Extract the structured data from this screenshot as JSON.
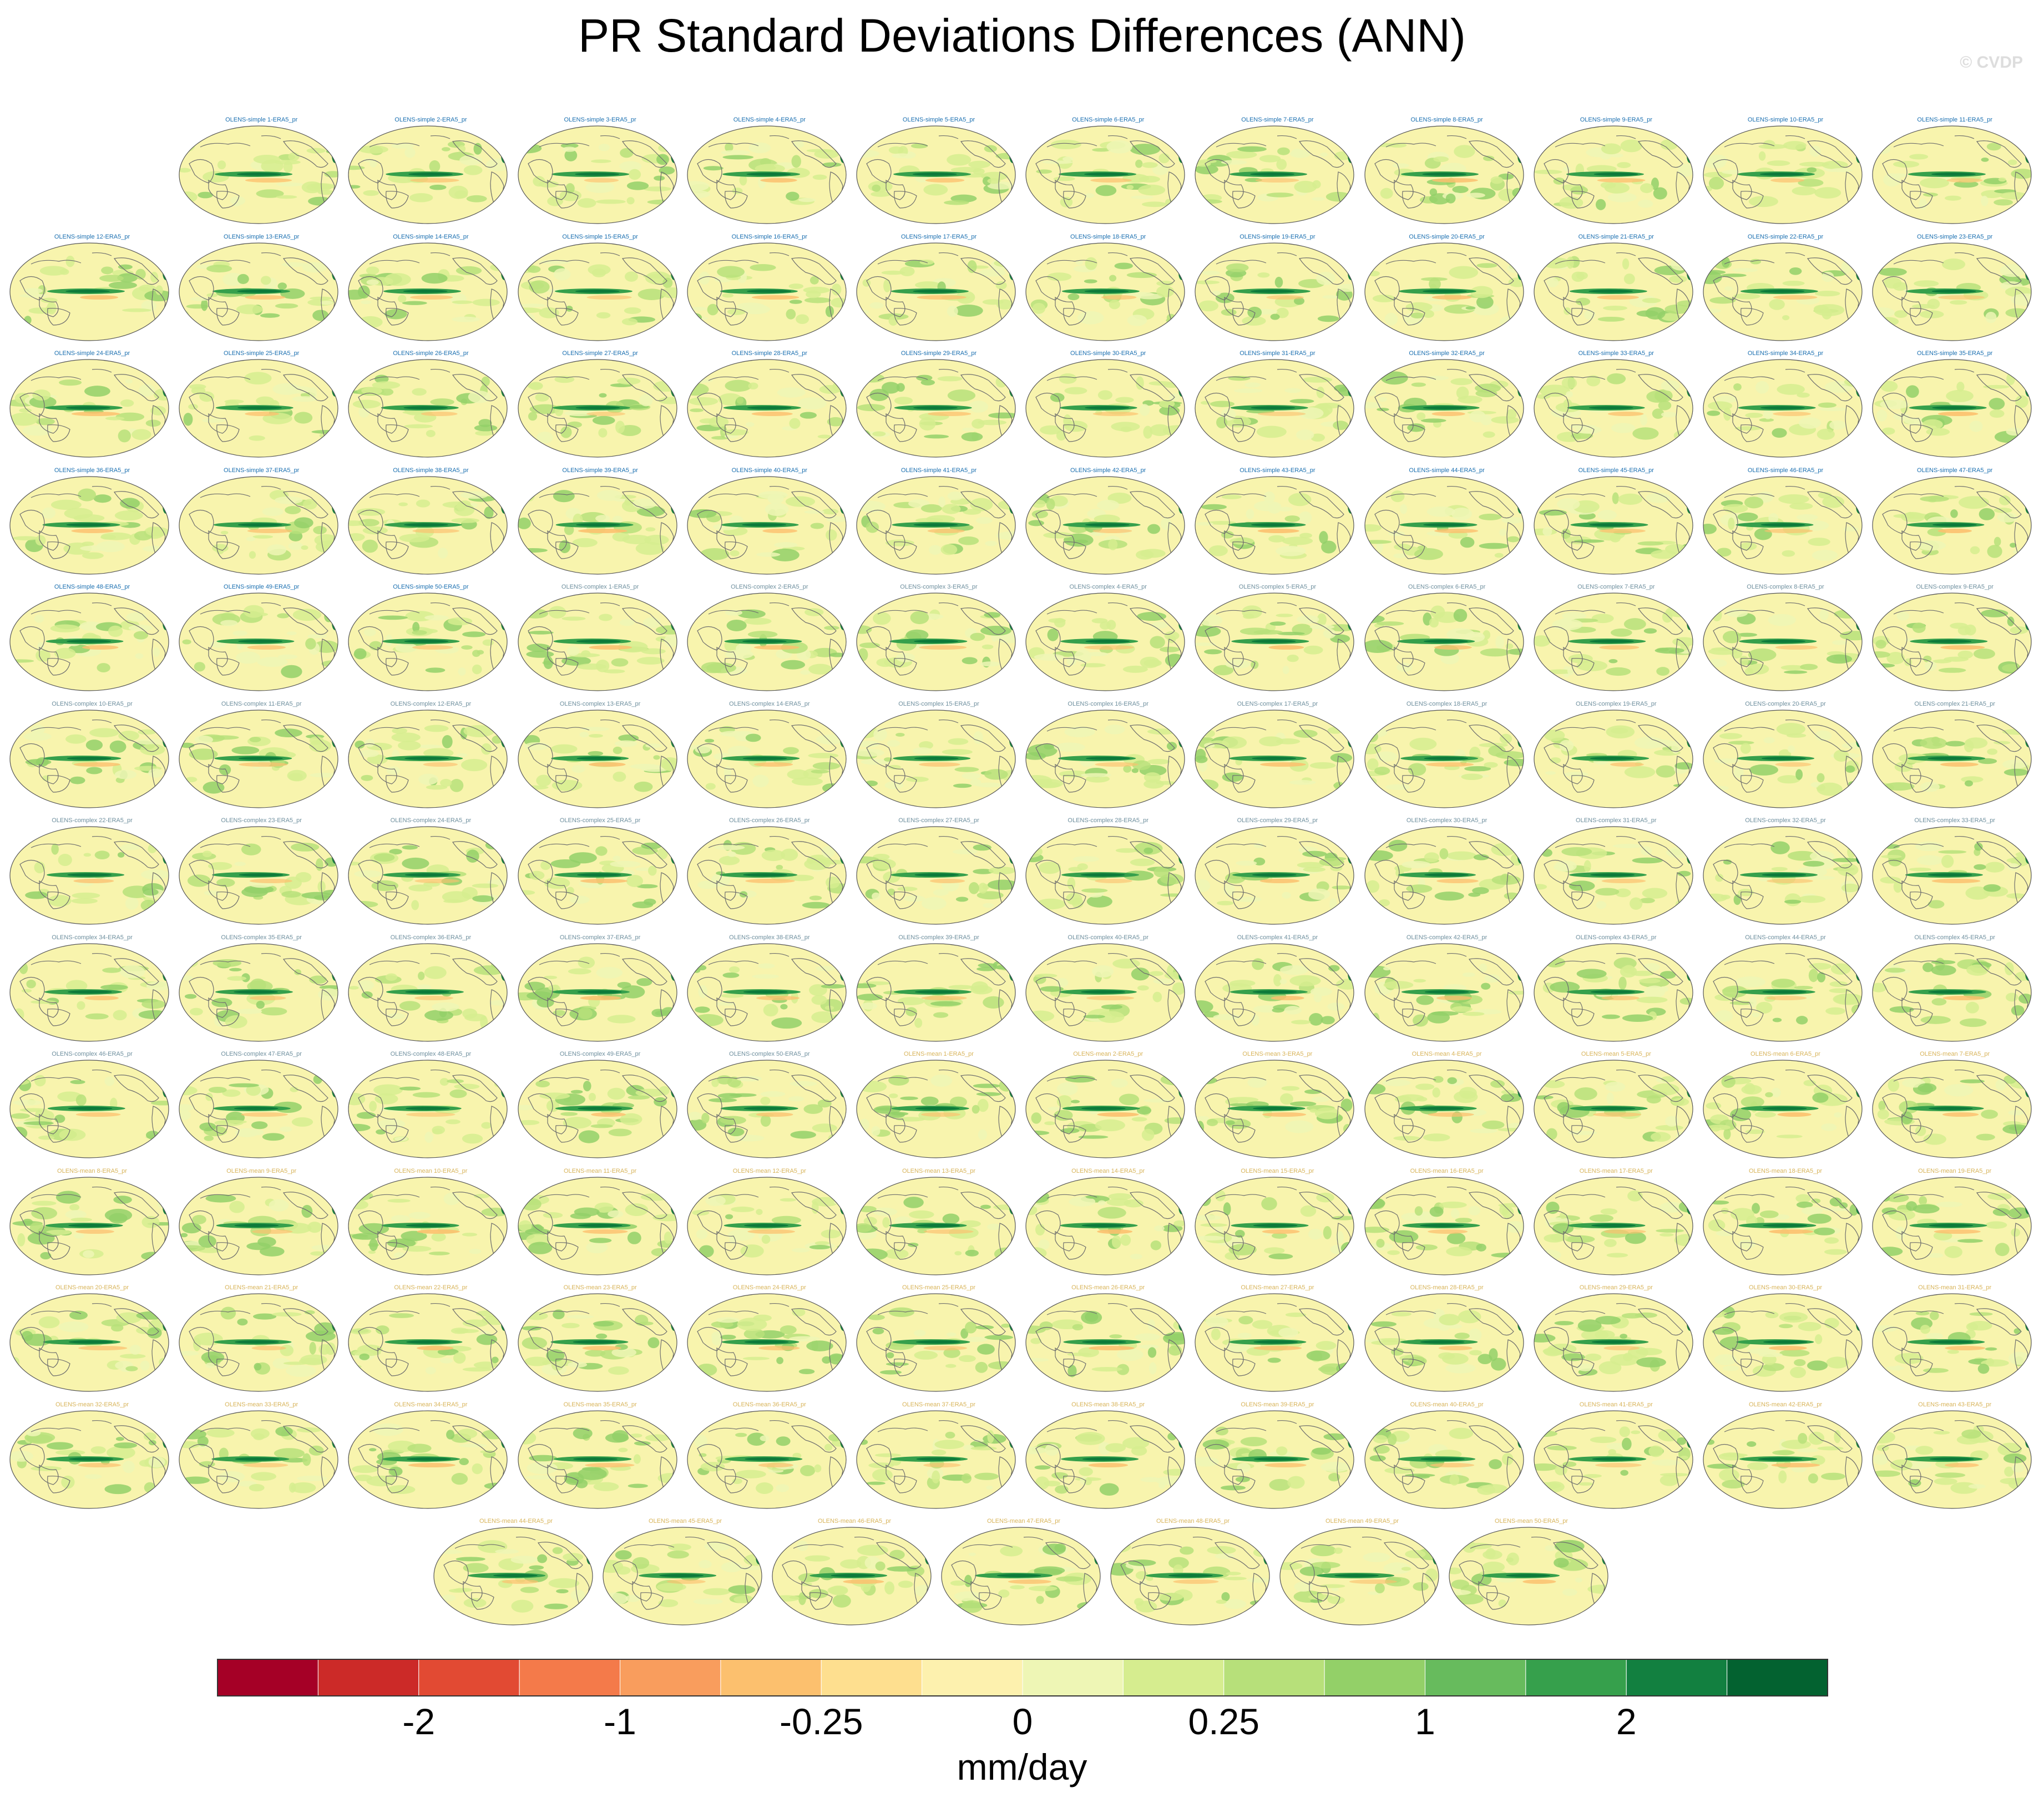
{
  "title": "PR Standard Deviations Differences (ANN)",
  "watermark": "© CVDP",
  "chart_data": {
    "type": "heatmap",
    "subtype": "small-multiple global map panels (Hammer projection)",
    "title": "PR Standard Deviations Differences (ANN)",
    "panels": [
      "OLENS-simple 1-ERA5_pr",
      "OLENS-simple 2-ERA5_pr",
      "OLENS-simple 3-ERA5_pr",
      "OLENS-simple 4-ERA5_pr",
      "OLENS-simple 5-ERA5_pr",
      "OLENS-simple 6-ERA5_pr",
      "OLENS-simple 7-ERA5_pr",
      "OLENS-simple 8-ERA5_pr",
      "OLENS-simple 9-ERA5_pr",
      "OLENS-simple 10-ERA5_pr",
      "OLENS-simple 11-ERA5_pr",
      "OLENS-simple 12-ERA5_pr",
      "OLENS-simple 13-ERA5_pr",
      "OLENS-simple 14-ERA5_pr",
      "OLENS-simple 15-ERA5_pr",
      "OLENS-simple 16-ERA5_pr",
      "OLENS-simple 17-ERA5_pr",
      "OLENS-simple 18-ERA5_pr",
      "OLENS-simple 19-ERA5_pr",
      "OLENS-simple 20-ERA5_pr",
      "OLENS-simple 21-ERA5_pr",
      "OLENS-simple 22-ERA5_pr",
      "OLENS-simple 23-ERA5_pr",
      "OLENS-simple 24-ERA5_pr",
      "OLENS-simple 25-ERA5_pr",
      "OLENS-simple 26-ERA5_pr",
      "OLENS-simple 27-ERA5_pr",
      "OLENS-simple 28-ERA5_pr",
      "OLENS-simple 29-ERA5_pr",
      "OLENS-simple 30-ERA5_pr",
      "OLENS-simple 31-ERA5_pr",
      "OLENS-simple 32-ERA5_pr",
      "OLENS-simple 33-ERA5_pr",
      "OLENS-simple 34-ERA5_pr",
      "OLENS-simple 35-ERA5_pr",
      "OLENS-simple 36-ERA5_pr",
      "OLENS-simple 37-ERA5_pr",
      "OLENS-simple 38-ERA5_pr",
      "OLENS-simple 39-ERA5_pr",
      "OLENS-simple 40-ERA5_pr",
      "OLENS-simple 41-ERA5_pr",
      "OLENS-simple 42-ERA5_pr",
      "OLENS-simple 43-ERA5_pr",
      "OLENS-simple 44-ERA5_pr",
      "OLENS-simple 45-ERA5_pr",
      "OLENS-simple 46-ERA5_pr",
      "OLENS-simple 47-ERA5_pr",
      "OLENS-simple 48-ERA5_pr",
      "OLENS-simple 49-ERA5_pr",
      "OLENS-simple 50-ERA5_pr",
      "OLENS-complex 1-ERA5_pr",
      "OLENS-complex 2-ERA5_pr",
      "OLENS-complex 3-ERA5_pr",
      "OLENS-complex 4-ERA5_pr",
      "OLENS-complex 5-ERA5_pr",
      "OLENS-complex 6-ERA5_pr",
      "OLENS-complex 7-ERA5_pr",
      "OLENS-complex 8-ERA5_pr",
      "OLENS-complex 9-ERA5_pr",
      "OLENS-complex 10-ERA5_pr",
      "OLENS-complex 11-ERA5_pr",
      "OLENS-complex 12-ERA5_pr",
      "OLENS-complex 13-ERA5_pr",
      "OLENS-complex 14-ERA5_pr",
      "OLENS-complex 15-ERA5_pr",
      "OLENS-complex 16-ERA5_pr",
      "OLENS-complex 17-ERA5_pr",
      "OLENS-complex 18-ERA5_pr",
      "OLENS-complex 19-ERA5_pr",
      "OLENS-complex 20-ERA5_pr",
      "OLENS-complex 21-ERA5_pr",
      "OLENS-complex 22-ERA5_pr",
      "OLENS-complex 23-ERA5_pr",
      "OLENS-complex 24-ERA5_pr",
      "OLENS-complex 25-ERA5_pr",
      "OLENS-complex 26-ERA5_pr",
      "OLENS-complex 27-ERA5_pr",
      "OLENS-complex 28-ERA5_pr",
      "OLENS-complex 29-ERA5_pr",
      "OLENS-complex 30-ERA5_pr",
      "OLENS-complex 31-ERA5_pr",
      "OLENS-complex 32-ERA5_pr",
      "OLENS-complex 33-ERA5_pr",
      "OLENS-complex 34-ERA5_pr",
      "OLENS-complex 35-ERA5_pr",
      "OLENS-complex 36-ERA5_pr",
      "OLENS-complex 37-ERA5_pr",
      "OLENS-complex 38-ERA5_pr",
      "OLENS-complex 39-ERA5_pr",
      "OLENS-complex 40-ERA5_pr",
      "OLENS-complex 41-ERA5_pr",
      "OLENS-complex 42-ERA5_pr",
      "OLENS-complex 43-ERA5_pr",
      "OLENS-complex 44-ERA5_pr",
      "OLENS-complex 45-ERA5_pr",
      "OLENS-complex 46-ERA5_pr",
      "OLENS-complex 47-ERA5_pr",
      "OLENS-complex 48-ERA5_pr",
      "OLENS-complex 49-ERA5_pr",
      "OLENS-complex 50-ERA5_pr",
      "OLENS-mean 1-ERA5_pr",
      "OLENS-mean 2-ERA5_pr",
      "OLENS-mean 3-ERA5_pr",
      "OLENS-mean 4-ERA5_pr",
      "OLENS-mean 5-ERA5_pr",
      "OLENS-mean 6-ERA5_pr",
      "OLENS-mean 7-ERA5_pr",
      "OLENS-mean 8-ERA5_pr",
      "OLENS-mean 9-ERA5_pr",
      "OLENS-mean 10-ERA5_pr",
      "OLENS-mean 11-ERA5_pr",
      "OLENS-mean 12-ERA5_pr",
      "OLENS-mean 13-ERA5_pr",
      "OLENS-mean 14-ERA5_pr",
      "OLENS-mean 15-ERA5_pr",
      "OLENS-mean 16-ERA5_pr",
      "OLENS-mean 17-ERA5_pr",
      "OLENS-mean 18-ERA5_pr",
      "OLENS-mean 19-ERA5_pr",
      "OLENS-mean 20-ERA5_pr",
      "OLENS-mean 21-ERA5_pr",
      "OLENS-mean 22-ERA5_pr",
      "OLENS-mean 23-ERA5_pr",
      "OLENS-mean 24-ERA5_pr",
      "OLENS-mean 25-ERA5_pr",
      "OLENS-mean 26-ERA5_pr",
      "OLENS-mean 27-ERA5_pr",
      "OLENS-mean 28-ERA5_pr",
      "OLENS-mean 29-ERA5_pr",
      "OLENS-mean 30-ERA5_pr",
      "OLENS-mean 31-ERA5_pr",
      "OLENS-mean 32-ERA5_pr",
      "OLENS-mean 33-ERA5_pr",
      "OLENS-mean 34-ERA5_pr",
      "OLENS-mean 35-ERA5_pr",
      "OLENS-mean 36-ERA5_pr",
      "OLENS-mean 37-ERA5_pr",
      "OLENS-mean 38-ERA5_pr",
      "OLENS-mean 39-ERA5_pr",
      "OLENS-mean 40-ERA5_pr",
      "OLENS-mean 41-ERA5_pr",
      "OLENS-mean 42-ERA5_pr",
      "OLENS-mean 43-ERA5_pr",
      "OLENS-mean 44-ERA5_pr",
      "OLENS-mean 45-ERA5_pr",
      "OLENS-mean 46-ERA5_pr",
      "OLENS-mean 47-ERA5_pr",
      "OLENS-mean 48-ERA5_pr",
      "OLENS-mean 49-ERA5_pr",
      "OLENS-mean 50-ERA5_pr"
    ],
    "panel_title_colors": {
      "OLENS-simple": "#1a6fb0",
      "OLENS-complex": "#6e8f9e",
      "OLENS-mean": "#d8b45a"
    },
    "colorbar": {
      "colors": [
        "#a50026",
        "#cc2a28",
        "#e24a33",
        "#f47a4a",
        "#f99d5d",
        "#fcc06e",
        "#fedf8f",
        "#fdf1ae",
        "#eef6b5",
        "#d6ed8f",
        "#b7e07a",
        "#93d068",
        "#67bb5d",
        "#36a04c",
        "#128040",
        "#036230"
      ],
      "tick_labels": [
        "-2",
        "-1",
        "-0.25",
        "0",
        "0.25",
        "1",
        "2"
      ],
      "units": "mm/day"
    },
    "map_colors": {
      "ocean_background": "#f8f4ad",
      "land_outline": "#6e6e6e",
      "equatorial_band_max": "#0d7a3a"
    }
  }
}
